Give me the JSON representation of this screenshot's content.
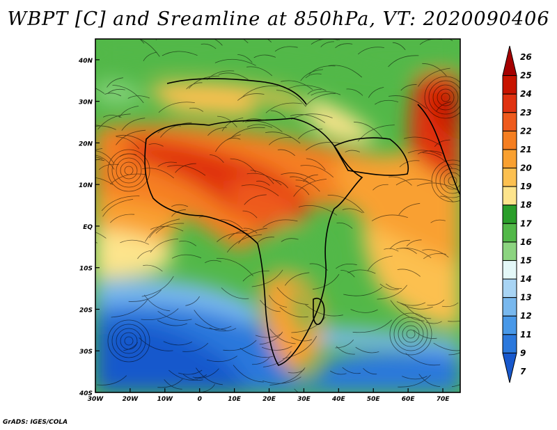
{
  "title": "WBPT [C] and Sreamline at 850hPa, VT: 2020090406",
  "credit": "GrADS: IGES/COLA",
  "map": {
    "lat_labels": [
      "40N",
      "30N",
      "20N",
      "10N",
      "EQ",
      "10S",
      "20S",
      "30S",
      "40S"
    ],
    "lon_labels": [
      "30W",
      "20W",
      "10W",
      "0",
      "10E",
      "20E",
      "30E",
      "40E",
      "50E",
      "60E",
      "70E"
    ],
    "lat_range": [
      -40,
      45
    ],
    "lon_range": [
      -30,
      75
    ]
  },
  "colorbar": {
    "levels": [
      "26",
      "25",
      "24",
      "23",
      "22",
      "21",
      "20",
      "19",
      "18",
      "17",
      "16",
      "15",
      "14",
      "13",
      "12",
      "11",
      "9",
      "7"
    ],
    "colors": [
      "#a50000",
      "#c81400",
      "#e03210",
      "#ee5a1c",
      "#f57e20",
      "#f9a030",
      "#fcc050",
      "#fde48c",
      "#2a9e2a",
      "#52b848",
      "#8cd480",
      "#e4f8f8",
      "#a8d4f4",
      "#78b8ee",
      "#4898e8",
      "#2b78dc",
      "#1858cc"
    ]
  },
  "chart_data": {
    "type": "heatmap",
    "variable": "WBPT [C]",
    "level": "850hPa",
    "valid_time": "2020090406",
    "lat_range": [
      -40,
      45
    ],
    "lon_range": [
      -30,
      75
    ],
    "color_levels": [
      7,
      9,
      11,
      12,
      13,
      14,
      15,
      16,
      17,
      18,
      19,
      20,
      21,
      22,
      23,
      24,
      25,
      26
    ]
  }
}
